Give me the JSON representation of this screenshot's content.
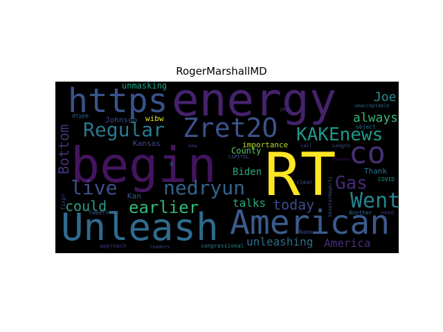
{
  "figure": {
    "title": "RogerMarshallMD"
  },
  "wordcloud": {
    "words": [
      {
        "text": "energy",
        "color": "#44236b"
      },
      {
        "text": "begin",
        "color": "#43155e"
      },
      {
        "text": "RT",
        "color": "#fde725"
      },
      {
        "text": "Unleash",
        "color": "#2f6b8e"
      },
      {
        "text": "American",
        "color": "#3a5b8c"
      },
      {
        "text": "https",
        "color": "#39538a"
      },
      {
        "text": "Zret2O",
        "color": "#3b528b"
      },
      {
        "text": "co",
        "color": "#452f75"
      },
      {
        "text": "Regular",
        "color": "#2a788e"
      },
      {
        "text": "KAKEnews",
        "color": "#1f9a8a"
      },
      {
        "text": "nedryun",
        "color": "#33638d"
      },
      {
        "text": "Went",
        "color": "#25858e"
      },
      {
        "text": "live",
        "color": "#3b528b"
      },
      {
        "text": "Gas",
        "color": "#482878"
      },
      {
        "text": "earlier",
        "color": "#35b779"
      },
      {
        "text": "could",
        "color": "#2a9c89"
      },
      {
        "text": "today",
        "color": "#3e4a89"
      },
      {
        "text": "Bottom",
        "color": "#46307a"
      },
      {
        "text": "Joe",
        "color": "#2d8c8d"
      },
      {
        "text": "always",
        "color": "#34b679"
      },
      {
        "text": "unleashing",
        "color": "#2e6f8e"
      },
      {
        "text": "America",
        "color": "#472e7c"
      },
      {
        "text": "talks",
        "color": "#25ab82"
      },
      {
        "text": "Biden",
        "color": "#25ab82"
      },
      {
        "text": "unmasking",
        "color": "#20a386"
      },
      {
        "text": "Johnson",
        "color": "#3e4a89"
      },
      {
        "text": "wibw",
        "color": "#e3e418"
      },
      {
        "text": "importance",
        "color": "#bddf26"
      },
      {
        "text": "County",
        "color": "#5ec962"
      },
      {
        "text": "Kansas",
        "color": "#3f4788"
      },
      {
        "text": "Kan",
        "color": "#3b528b"
      },
      {
        "text": "Thank",
        "color": "#2c728e"
      },
      {
        "text": "COVID",
        "color": "#21918c"
      },
      {
        "text": "dtype",
        "color": "#31688e"
      },
      {
        "text": "OPEN",
        "color": "#472d7b"
      },
      {
        "text": "unacceptable",
        "color": "#31688e"
      },
      {
        "text": "object",
        "color": "#2c738e"
      },
      {
        "text": "Length",
        "color": "#3b528b"
      },
      {
        "text": "call",
        "color": "#3b528b"
      },
      {
        "text": "CAPITOL",
        "color": "#3b528b"
      },
      {
        "text": "new",
        "color": "#433e85"
      },
      {
        "text": "u",
        "color": "#2f6c8e"
      },
      {
        "text": "clear",
        "color": "#3d4d8a"
      },
      {
        "text": "Name",
        "color": "#3e4a89"
      },
      {
        "text": "Another",
        "color": "#31688e"
      },
      {
        "text": "need",
        "color": "#472f7d"
      },
      {
        "text": "tweets",
        "color": "#39568c"
      },
      {
        "text": "fixpr",
        "color": "#423f85"
      },
      {
        "text": "approach",
        "color": "#46337e"
      },
      {
        "text": "leaders",
        "color": "#3f4788"
      },
      {
        "text": "congressional",
        "color": "#25848e"
      },
      {
        "text": "SenatorHagerty",
        "color": "#3b528b"
      },
      {
        "text": "discuss",
        "color": "#44196a"
      }
    ]
  }
}
